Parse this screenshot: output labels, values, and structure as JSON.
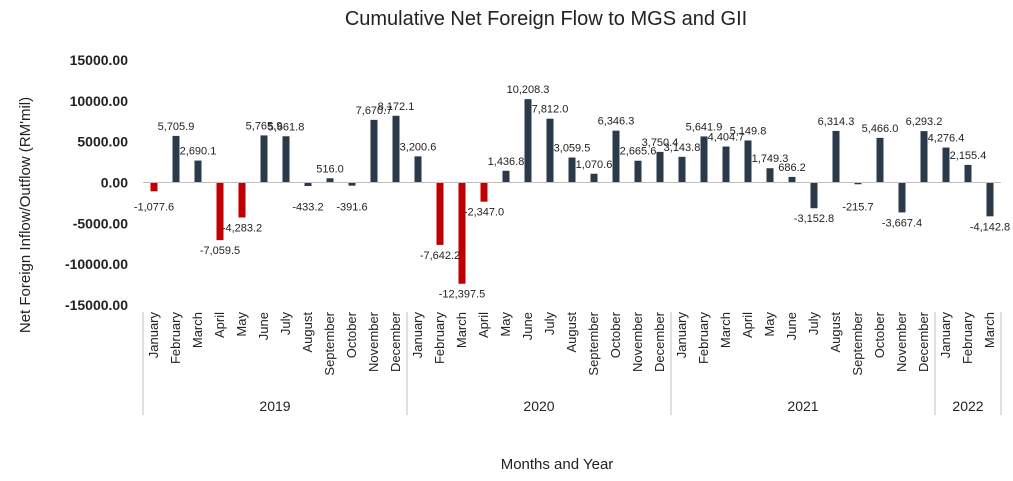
{
  "chart_data": {
    "type": "bar",
    "title": "Cumulative Net Foreign Flow to MGS and GII",
    "xlabel": "Months and Year",
    "ylabel": "Net Foreign Inflow/Outflow (RM'mil)",
    "ylim": [
      -15000,
      15000
    ],
    "yticks": [
      "15000.00",
      "10000.00",
      "5000.00",
      "0.00",
      "-5000.00",
      "-10000.00",
      "-15000.00"
    ],
    "ytick_values": [
      15000,
      10000,
      5000,
      0,
      -5000,
      -10000,
      -15000
    ],
    "grid": false,
    "legend": "none",
    "colors": {
      "positive": "#2b3a4a",
      "negative": "#c00000",
      "axis": "#bfbfbf"
    },
    "years": [
      {
        "label": "2019",
        "count": 12
      },
      {
        "label": "2020",
        "count": 12
      },
      {
        "label": "2021",
        "count": 12
      },
      {
        "label": "2022",
        "count": 3
      }
    ],
    "categories": [
      "January",
      "February",
      "March",
      "April",
      "May",
      "June",
      "July",
      "August",
      "September",
      "October",
      "November",
      "December",
      "January",
      "February",
      "March",
      "April",
      "May",
      "June",
      "July",
      "August",
      "September",
      "October",
      "November",
      "December",
      "January",
      "February",
      "March",
      "April",
      "May",
      "June",
      "July",
      "August",
      "September",
      "October",
      "November",
      "December",
      "January",
      "February",
      "March"
    ],
    "values": [
      -1077.6,
      5705.9,
      2690.1,
      -7059.5,
      -4283.2,
      5765.9,
      5661.8,
      -433.2,
      516.0,
      -391.6,
      7670.7,
      8172.1,
      3200.6,
      -7642.2,
      -12397.5,
      -2347.0,
      1436.8,
      10208.3,
      7812.0,
      3059.5,
      1070.6,
      6346.3,
      2665.6,
      3750.4,
      3143.8,
      5641.9,
      4404.7,
      5149.8,
      1749.3,
      686.2,
      -3152.8,
      6314.3,
      -215.7,
      5466.0,
      -3667.4,
      6293.2,
      4276.4,
      2155.4,
      -4142.8
    ],
    "data_labels": [
      "-1,077.6",
      "5,705.9",
      "2,690.1",
      "-7,059.5",
      "-4,283.2",
      "5,765.9",
      "5,661.8",
      "-433.2",
      "516.0",
      "-391.6",
      "7,670.7",
      "8,172.1",
      "3,200.6",
      "-7,642.2",
      "-12,397.5",
      "-2,347.0",
      "1,436.8",
      "10,208.3",
      "7,812.0",
      "3,059.5",
      "1,070.6",
      "6,346.3",
      "2,665.6",
      "3,750.4",
      "3,143.8",
      "5,641.9",
      "4,404.7",
      "5,149.8",
      "1,749.3",
      "686.2",
      "-3,152.8",
      "6,314.3",
      "-215.7",
      "5,466.0",
      "-3,667.4",
      "6,293.2",
      "4,276.4",
      "2,155.4",
      "-4,142.8"
    ],
    "bar_colors": [
      "negative",
      "positive",
      "positive",
      "negative",
      "negative",
      "positive",
      "positive",
      "positive",
      "positive",
      "positive",
      "positive",
      "positive",
      "positive",
      "negative",
      "negative",
      "negative",
      "positive",
      "positive",
      "positive",
      "positive",
      "positive",
      "positive",
      "positive",
      "positive",
      "positive",
      "positive",
      "positive",
      "positive",
      "positive",
      "positive",
      "positive",
      "positive",
      "positive",
      "positive",
      "positive",
      "positive",
      "positive",
      "positive",
      "positive"
    ]
  }
}
